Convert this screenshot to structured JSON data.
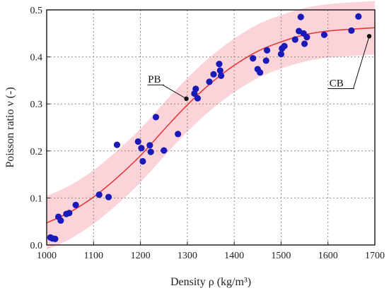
{
  "chart_data": {
    "type": "scatter",
    "title": "",
    "xlabel": "Density ρ (kg/m³)",
    "ylabel": "Poisson ratio ν (-)",
    "xlim": [
      1000,
      1700
    ],
    "ylim": [
      0,
      0.5
    ],
    "xticks": [
      "1000",
      "1100",
      "1200",
      "1300",
      "1400",
      "1500",
      "1600",
      "1700"
    ],
    "yticks": [
      "0.0",
      "0.1",
      "0.2",
      "0.3",
      "0.4",
      "0.5"
    ],
    "grid": true,
    "colors": {
      "points": "#1a1ab8",
      "fit": "#e83a3a",
      "band": "#f7b8bf",
      "marker": "#111111"
    },
    "points": [
      [
        1008,
        0.016
      ],
      [
        1012,
        0.014
      ],
      [
        1018,
        0.013
      ],
      [
        1025,
        0.06
      ],
      [
        1030,
        0.052
      ],
      [
        1042,
        0.066
      ],
      [
        1048,
        0.068
      ],
      [
        1062,
        0.085
      ],
      [
        1112,
        0.107
      ],
      [
        1132,
        0.102
      ],
      [
        1150,
        0.213
      ],
      [
        1195,
        0.22
      ],
      [
        1202,
        0.206
      ],
      [
        1205,
        0.178
      ],
      [
        1220,
        0.212
      ],
      [
        1222,
        0.198
      ],
      [
        1233,
        0.272
      ],
      [
        1250,
        0.201
      ],
      [
        1280,
        0.236
      ],
      [
        1315,
        0.322
      ],
      [
        1318,
        0.332
      ],
      [
        1322,
        0.312
      ],
      [
        1347,
        0.347
      ],
      [
        1356,
        0.363
      ],
      [
        1368,
        0.385
      ],
      [
        1370,
        0.371
      ],
      [
        1372,
        0.36
      ],
      [
        1440,
        0.397
      ],
      [
        1450,
        0.374
      ],
      [
        1455,
        0.367
      ],
      [
        1468,
        0.392
      ],
      [
        1470,
        0.414
      ],
      [
        1500,
        0.406
      ],
      [
        1502,
        0.418
      ],
      [
        1507,
        0.423
      ],
      [
        1530,
        0.437
      ],
      [
        1538,
        0.455
      ],
      [
        1542,
        0.485
      ],
      [
        1548,
        0.45
      ],
      [
        1550,
        0.428
      ],
      [
        1555,
        0.442
      ],
      [
        1592,
        0.447
      ],
      [
        1650,
        0.456
      ],
      [
        1665,
        0.486
      ]
    ],
    "fit_curve": {
      "name": "fit",
      "x": [
        1000,
        1050,
        1100,
        1150,
        1200,
        1250,
        1300,
        1350,
        1400,
        1450,
        1500,
        1550,
        1600,
        1650,
        1700
      ],
      "y": [
        0.047,
        0.07,
        0.102,
        0.143,
        0.19,
        0.245,
        0.298,
        0.344,
        0.382,
        0.412,
        0.432,
        0.447,
        0.455,
        0.459,
        0.462
      ],
      "band_width": 0.057
    },
    "annotations": [
      {
        "label": "PB",
        "point": [
          1298,
          0.311
        ]
      },
      {
        "label": "CB",
        "point": [
          1688,
          0.444
        ]
      }
    ]
  }
}
